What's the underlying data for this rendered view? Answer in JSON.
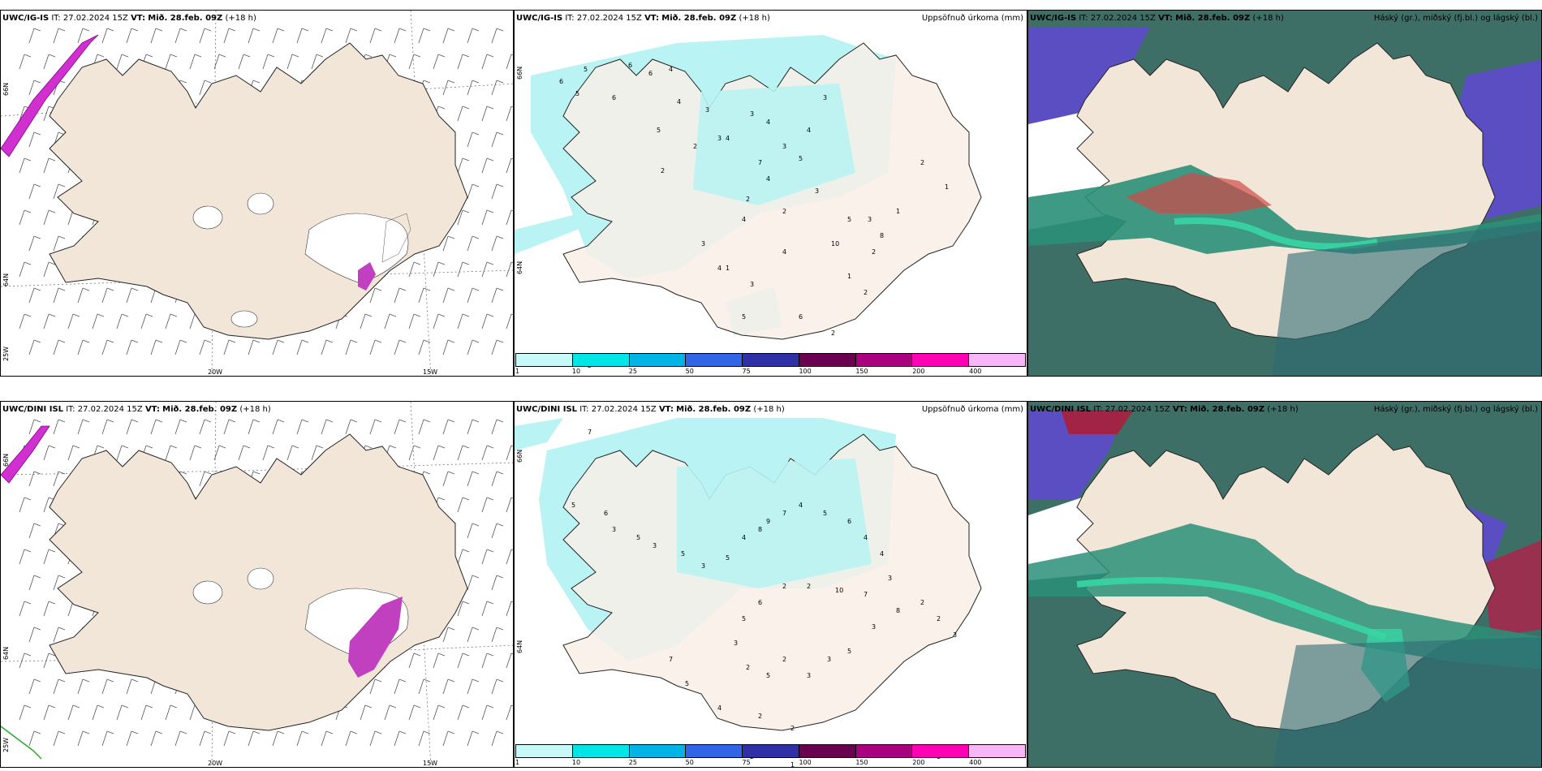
{
  "colors": {
    "land": "#f2e6d9",
    "precip": "#b9f3f3",
    "sea_dark": "#3e6f66",
    "sea_teal": "#2f6a73",
    "high_cloud": "#5a4ec2",
    "mid_cloud": "#d14a47",
    "low_green": "#37d6a3"
  },
  "legend": {
    "ticks": [
      "1",
      "10",
      "25",
      "50",
      "75",
      "100",
      "150",
      "200",
      "400"
    ],
    "colors": [
      "#c8f9f9",
      "#00e6e6",
      "#00b4e6",
      "#3264e6",
      "#2f2fa6",
      "#6a0050",
      "#a8007e",
      "#ff00b4",
      "#f7b6f5"
    ]
  },
  "rows": [
    {
      "model": "UWC/IG-IS",
      "it_label": "IT:",
      "it_value": "27.02.2024 15Z",
      "vt_label": "VT:",
      "vt_value": "Mið. 28.feb. 09Z",
      "lead": "(+18 h)",
      "axis": {
        "lat66": "66N",
        "lat64": "64N",
        "lon25": "25W",
        "lon20": "20W",
        "lon15": "15W"
      },
      "precip_title": "Uppsöfnuð úrkoma (mm)",
      "cloud_title": "Háský (gr.), miðský (fj.bl.) og lágský (bl.)"
    },
    {
      "model": "UWC/DINI ISL",
      "it_label": "IT:",
      "it_value": "27.02.2024 15Z",
      "vt_label": "VT:",
      "vt_value": "Mið. 28.feb. 09Z",
      "lead": "(+18 h)",
      "axis": {
        "lat66": "66N",
        "lat64": "64N",
        "lon25": "25W",
        "lon20": "20W",
        "lon15": "15W"
      },
      "precip_title": "Uppsöfnuð úrkoma (mm)",
      "cloud_title": "Háský (gr.), miðský (fj.bl.) og lágský (bl.)"
    }
  ],
  "precip_numbers_top": [
    "5",
    "6",
    "5",
    "6",
    "6",
    "6",
    "4",
    "3",
    "3",
    "4",
    "5",
    "3",
    "4",
    "4",
    "2",
    "2",
    "3",
    "5",
    "4",
    "3",
    "7",
    "4",
    "2",
    "3",
    "2",
    "4",
    "3",
    "1",
    "3",
    "4",
    "10",
    "5",
    "3",
    "8",
    "2",
    "1",
    "1",
    "1",
    "2",
    "3",
    "5",
    "4",
    "6",
    "2",
    "2",
    "2",
    "1"
  ],
  "precip_numbers_bottom": [
    "7",
    "5",
    "6",
    "3",
    "5",
    "3",
    "5",
    "3",
    "5",
    "4",
    "8",
    "9",
    "7",
    "4",
    "5",
    "6",
    "4",
    "4",
    "3",
    "7",
    "10",
    "2",
    "2",
    "6",
    "5",
    "3",
    "2",
    "5",
    "2",
    "3",
    "3",
    "5",
    "3",
    "8",
    "2",
    "2",
    "3",
    "7",
    "5",
    "4",
    "2",
    "2",
    "1",
    "2",
    "1"
  ]
}
